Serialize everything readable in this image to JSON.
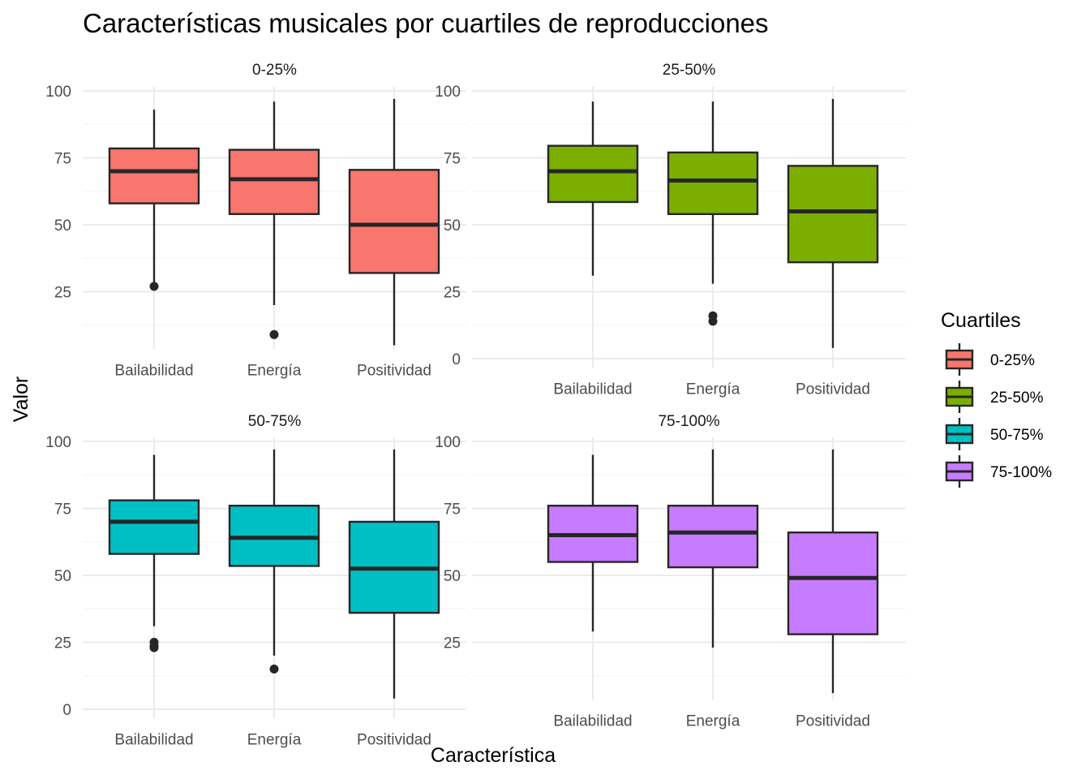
{
  "chart_data": {
    "type": "box",
    "title": "Características musicales por cuartiles de reproducciones",
    "xlabel": "Característica",
    "ylabel": "Valor",
    "categories": [
      "Bailabilidad",
      "Energía",
      "Positividad"
    ],
    "legend": {
      "title": "Cuartiles",
      "position": "right",
      "items": [
        {
          "label": "0-25%",
          "color": "#F8766D"
        },
        {
          "label": "25-50%",
          "color": "#7CAE00"
        },
        {
          "label": "50-75%",
          "color": "#00BFC4"
        },
        {
          "label": "75-100%",
          "color": "#C77CFF"
        }
      ]
    },
    "grid": true,
    "panels": [
      {
        "label": "0-25%",
        "color": "#F8766D",
        "ylim": [
          0,
          100
        ],
        "yticks": [
          "25",
          "50",
          "75",
          "100"
        ],
        "boxes": [
          {
            "category": "Bailabilidad",
            "min": 27,
            "q1": 58,
            "median": 70,
            "q3": 78.5,
            "max": 93,
            "outliers": [
              27
            ]
          },
          {
            "category": "Energía",
            "min": 20,
            "q1": 54,
            "median": 67,
            "q3": 78,
            "max": 96,
            "outliers": [
              9
            ]
          },
          {
            "category": "Positividad",
            "min": 5,
            "q1": 32,
            "median": 50,
            "q3": 70.5,
            "max": 97,
            "outliers": []
          }
        ]
      },
      {
        "label": "25-50%",
        "color": "#7CAE00",
        "ylim": [
          0,
          100
        ],
        "yticks": [
          "0",
          "25",
          "50",
          "75",
          "100"
        ],
        "boxes": [
          {
            "category": "Bailabilidad",
            "min": 31,
            "q1": 58.5,
            "median": 70,
            "q3": 79.5,
            "max": 96,
            "outliers": []
          },
          {
            "category": "Energía",
            "min": 28,
            "q1": 54,
            "median": 66.5,
            "q3": 77,
            "max": 96,
            "outliers": [
              16,
              14
            ]
          },
          {
            "category": "Positividad",
            "min": 4,
            "q1": 36,
            "median": 55,
            "q3": 72,
            "max": 97,
            "outliers": []
          }
        ]
      },
      {
        "label": "50-75%",
        "color": "#00BFC4",
        "ylim": [
          0,
          100
        ],
        "yticks": [
          "0",
          "25",
          "50",
          "75",
          "100"
        ],
        "boxes": [
          {
            "category": "Bailabilidad",
            "min": 31,
            "q1": 58,
            "median": 70,
            "q3": 78,
            "max": 95,
            "outliers": [
              25,
              23.5,
              23
            ]
          },
          {
            "category": "Energía",
            "min": 20,
            "q1": 53.5,
            "median": 64,
            "q3": 76,
            "max": 97,
            "outliers": [
              15
            ]
          },
          {
            "category": "Positividad",
            "min": 4,
            "q1": 36,
            "median": 52.5,
            "q3": 70,
            "max": 97,
            "outliers": []
          }
        ]
      },
      {
        "label": "75-100%",
        "color": "#C77CFF",
        "ylim": [
          0,
          100
        ],
        "yticks": [
          "25",
          "50",
          "75",
          "100"
        ],
        "boxes": [
          {
            "category": "Bailabilidad",
            "min": 29,
            "q1": 55,
            "median": 65,
            "q3": 76,
            "max": 95,
            "outliers": []
          },
          {
            "category": "Energía",
            "min": 23,
            "q1": 53,
            "median": 66,
            "q3": 76,
            "max": 97,
            "outliers": []
          },
          {
            "category": "Positividad",
            "min": 6,
            "q1": 28,
            "median": 49,
            "q3": 66,
            "max": 97,
            "outliers": []
          }
        ]
      }
    ]
  }
}
